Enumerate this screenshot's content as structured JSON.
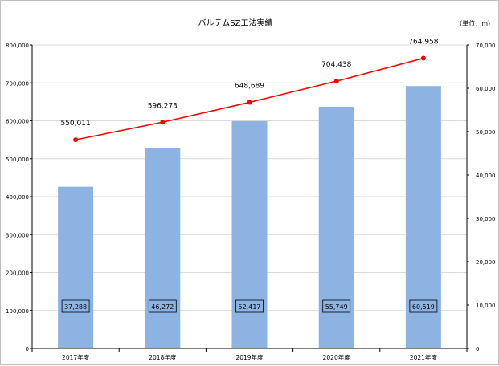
{
  "chart_data": {
    "type": "bar+line",
    "title": "バルテムSZ工法実績",
    "unit_note": "（単位：m）",
    "categories": [
      "2017年度",
      "2018年度",
      "2019年度",
      "2020年度",
      "2021年度"
    ],
    "bar_series": {
      "axis": "right",
      "color": "#8db3e2",
      "values": [
        37288,
        46272,
        52417,
        55749,
        60519
      ],
      "labels": [
        "37,288",
        "46,272",
        "52,417",
        "55,749",
        "60,519"
      ]
    },
    "line_series": {
      "axis": "left",
      "color": "#ff0000",
      "values": [
        550011,
        596273,
        648689,
        704438,
        764958
      ],
      "labels": [
        "550,011",
        "596,273",
        "648,689",
        "704,438",
        "764,958"
      ]
    },
    "y_left": {
      "lim": [
        0,
        800000
      ],
      "ticks": [
        0,
        100000,
        200000,
        300000,
        400000,
        500000,
        600000,
        700000,
        800000
      ],
      "tick_labels": [
        "0",
        "100,000",
        "200,000",
        "300,000",
        "400,000",
        "500,000",
        "600,000",
        "700,000",
        "800,000"
      ]
    },
    "y_right": {
      "lim": [
        0,
        70000
      ],
      "ticks": [
        0,
        10000,
        20000,
        30000,
        40000,
        50000,
        60000,
        70000
      ],
      "tick_labels": [
        "0",
        "10,000",
        "20,000",
        "30,000",
        "40,000",
        "50,000",
        "60,000",
        "70,000"
      ]
    },
    "grid": true,
    "legend": "none"
  }
}
